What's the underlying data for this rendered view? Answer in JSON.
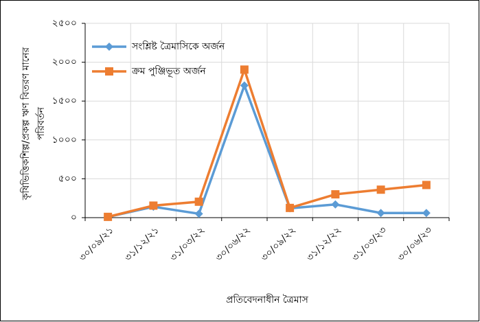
{
  "chart_data": {
    "type": "line",
    "y_label": [
      "কৃষিভিত্তিকশিল্প/প্রকল্প ঋণ বিতরণ মানের",
      "পরিবর্তন"
    ],
    "x_label": "প্রতিবেদনাধীন ত্রৈমাস",
    "categories": [
      "৩০/০৯/২১",
      "৩১/১২/২১",
      "৩১/০৩/২২",
      "৩০/০৬/২২",
      "৩০/০৯/২২",
      "৩১/১২/২২",
      "৩১/০৩/২৩",
      "৩০/০৬/২৩"
    ],
    "series": [
      {
        "name": "সংশ্লিষ্ট ত্রৈমাসিকে অর্জন",
        "color": "#5b9bd5",
        "marker": "diamond",
        "values": [
          10,
          140,
          50,
          1700,
          120,
          170,
          60,
          60
        ]
      },
      {
        "name": "ক্রম পুঞ্জিভূত অর্জন",
        "color": "#ed7d31",
        "marker": "square",
        "values": [
          10,
          155,
          205,
          1905,
          125,
          300,
          360,
          420
        ]
      }
    ],
    "ylim": [
      0,
      2500
    ],
    "yticks": [
      {
        "value": 0,
        "label": "০"
      },
      {
        "value": 500,
        "label": "৫০০"
      },
      {
        "value": 1000,
        "label": "১০০০"
      },
      {
        "value": 1500,
        "label": "১৫০০"
      },
      {
        "value": 2000,
        "label": "২০০০"
      },
      {
        "value": 2500,
        "label": "২৫০০"
      }
    ],
    "grid": true,
    "legend": "upper left"
  }
}
